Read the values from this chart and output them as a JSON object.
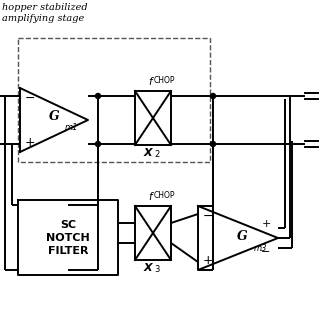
{
  "bg_color": "#ffffff",
  "line_color": "#000000",
  "title_text": "hopper stabilized\namplifying stage",
  "gm1_label": "G",
  "gm1_sub": "m1",
  "gm3_label": "G",
  "gm3_sub": "m3",
  "x2_label": "X",
  "x2_sub": "2",
  "x3_label": "X",
  "x3_sub": "3",
  "fchop_label": "f",
  "fchop_sub": "CHOP",
  "sc_line1": "SC",
  "sc_line2": "NOTCH",
  "sc_line3": "FILTER",
  "figsize": [
    3.2,
    3.2
  ],
  "dpi": 100
}
